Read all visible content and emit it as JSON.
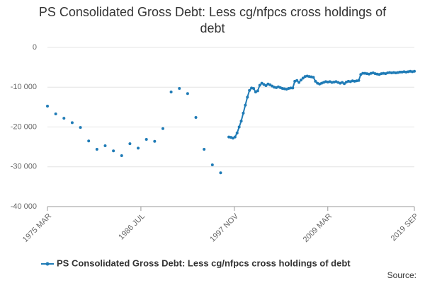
{
  "chart_data": {
    "type": "line",
    "title": "PS Consolidated Gross Debt: Less cg/nfpcs cross holdings of debt",
    "source_label": "Source:",
    "xlim": [
      "1975 MAR",
      "2019 SEP"
    ],
    "xticks": [
      "1975 MAR",
      "1986 JUL",
      "1997 NOV",
      "2009 MAR",
      "2019 SEP"
    ],
    "ylim": [
      -40000,
      0
    ],
    "yticks": [
      {
        "value": -40000,
        "label": "-40 000"
      },
      {
        "value": -30000,
        "label": "-30 000"
      },
      {
        "value": -20000,
        "label": "-20 000"
      },
      {
        "value": -10000,
        "label": "-10 000"
      },
      0
    ],
    "grid": true,
    "legend": "bottom",
    "x": [
      "1975 MAR",
      "1975 SEP",
      "1976 MAR",
      "1976 SEP",
      "1977 MAR",
      "1977 SEP",
      "1978 MAR",
      "1978 SEP",
      "1979 MAR",
      "1979 SEP",
      "1980 MAR",
      "1980 SEP",
      "1981 MAR",
      "1981 SEP",
      "1982 MAR",
      "1982 SEP",
      "1983 MAR",
      "1983 SEP",
      "1984 MAR",
      "1984 SEP",
      "1985 MAR",
      "1985 SEP",
      "1986 MAR",
      "1986 SEP",
      "1987 MAR",
      "1987 SEP",
      "1988 MAR",
      "1988 SEP",
      "1989 MAR",
      "1989 SEP",
      "1990 MAR",
      "1990 SEP",
      "1991 MAR",
      "1991 SEP",
      "1992 MAR",
      "1992 SEP",
      "1993 MAR",
      "1993 SEP",
      "1994 MAR",
      "1994 SEP",
      "1995 MAR",
      "1995 SEP",
      "1996 MAR",
      "1996 SEP",
      "1997 MAR",
      "1997 JUN",
      "1997 SEP",
      "1997 DEC",
      "1998 MAR",
      "1998 JUN",
      "1998 SEP",
      "1998 DEC",
      "1999 MAR",
      "1999 JUN",
      "1999 SEP",
      "1999 DEC",
      "2000 MAR",
      "2000 JUN",
      "2000 SEP",
      "2000 DEC",
      "2001 MAR",
      "2001 JUN",
      "2001 SEP",
      "2001 DEC",
      "2002 MAR",
      "2002 JUN",
      "2002 SEP",
      "2002 DEC",
      "2003 MAR",
      "2003 JUN",
      "2003 SEP",
      "2003 DEC",
      "2004 MAR",
      "2004 JUN",
      "2004 SEP",
      "2004 DEC",
      "2005 MAR",
      "2005 JUN",
      "2005 SEP",
      "2005 DEC",
      "2006 MAR",
      "2006 JUN",
      "2006 SEP",
      "2006 DEC",
      "2007 MAR",
      "2007 JUN",
      "2007 SEP",
      "2007 DEC",
      "2008 MAR",
      "2008 JUN",
      "2008 SEP",
      "2008 DEC",
      "2009 MAR",
      "2009 JUN",
      "2009 SEP",
      "2009 DEC",
      "2010 MAR",
      "2010 JUN",
      "2010 SEP",
      "2010 DEC",
      "2011 MAR",
      "2011 JUN",
      "2011 SEP",
      "2011 DEC",
      "2012 MAR",
      "2012 JUN",
      "2012 SEP",
      "2012 DEC",
      "2013 MAR",
      "2013 JUN",
      "2013 SEP",
      "2013 DEC",
      "2014 MAR",
      "2014 JUN",
      "2014 SEP",
      "2014 DEC",
      "2015 MAR",
      "2015 JUN",
      "2015 SEP",
      "2015 DEC",
      "2016 MAR",
      "2016 JUN",
      "2016 SEP",
      "2016 DEC",
      "2017 MAR",
      "2017 JUN",
      "2017 SEP",
      "2017 DEC",
      "2018 MAR",
      "2018 JUN",
      "2018 SEP",
      "2018 DEC",
      "2019 MAR",
      "2019 JUN",
      "2019 SEP"
    ],
    "series": [
      {
        "name": "PS Consolidated Gross Debt: Less cg/nfpcs cross holdings of debt",
        "color": "#1f7bb6",
        "values": [
          -14750,
          null,
          -16700,
          null,
          -17800,
          null,
          -18900,
          null,
          -20100,
          null,
          -23500,
          null,
          -25600,
          null,
          -24700,
          null,
          -26000,
          null,
          -27200,
          null,
          -24200,
          null,
          -25300,
          null,
          -23100,
          null,
          -23600,
          null,
          -20400,
          null,
          -11200,
          null,
          -10300,
          null,
          -11600,
          null,
          -17600,
          null,
          -25600,
          null,
          -29500,
          null,
          -31500,
          null,
          -22500,
          -22600,
          -22800,
          -22500,
          -21500,
          -20000,
          -18500,
          -16500,
          -14500,
          -12500,
          -10800,
          -10200,
          -10300,
          -11200,
          -10900,
          -9500,
          -9000,
          -9300,
          -9600,
          -9200,
          -9400,
          -9700,
          -10000,
          -10100,
          -9900,
          -10100,
          -10300,
          -10400,
          -10500,
          -10300,
          -10200,
          -10200,
          -8500,
          -8300,
          -8800,
          -8200,
          -7700,
          -7300,
          -7200,
          -7300,
          -7400,
          -7500,
          -8500,
          -9000,
          -9200,
          -9000,
          -8800,
          -8600,
          -8700,
          -8600,
          -8800,
          -8700,
          -8600,
          -8800,
          -9000,
          -8800,
          -9100,
          -8700,
          -8500,
          -8600,
          -8400,
          -8500,
          -8400,
          -8300,
          -6800,
          -6500,
          -6500,
          -6600,
          -6700,
          -6500,
          -6400,
          -6600,
          -6700,
          -6800,
          -6600,
          -6500,
          -6600,
          -6400,
          -6300,
          -6400,
          -6300,
          -6400,
          -6300,
          -6200,
          -6200,
          -6100,
          -6200,
          -6100,
          -6000,
          -6100,
          -6000
        ]
      }
    ]
  }
}
